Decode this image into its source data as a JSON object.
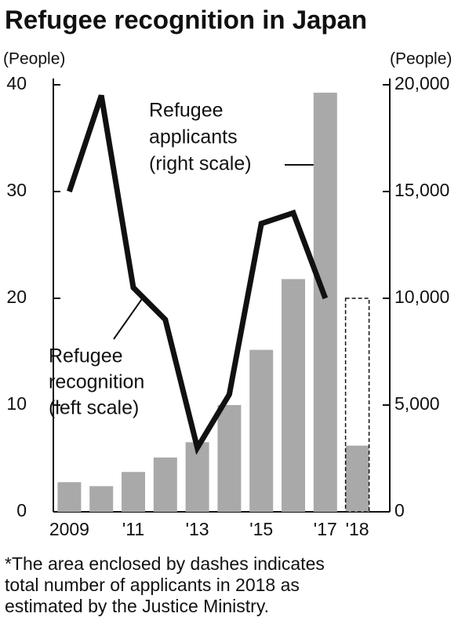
{
  "chart_data": {
    "type": "bar",
    "title": "Refugee recognition in Japan",
    "y_label": "(People)",
    "y2_label": "(People)",
    "categories": [
      "2009",
      null,
      "'11",
      null,
      "'13",
      null,
      "'15",
      null,
      "'17",
      "'18"
    ],
    "series": [
      {
        "type": "bar",
        "axis": "y2",
        "color": "#a9a9a9",
        "values": [
          1388,
          1202,
          1867,
          2545,
          3260,
          5000,
          7586,
          10901,
          19629,
          3100
        ]
      },
      {
        "type": "bar",
        "axis": "y2",
        "style": "dashed",
        "color": "#111111",
        "values": [
          null,
          null,
          null,
          null,
          null,
          null,
          null,
          null,
          null,
          10000
        ]
      },
      {
        "type": "line",
        "axis": "y",
        "color": "#111111",
        "values": [
          30,
          39,
          21,
          18,
          6,
          11,
          27,
          28,
          20,
          null
        ]
      }
    ],
    "ylim": [
      0,
      40
    ],
    "yticks": [
      0,
      10,
      20,
      30,
      40
    ],
    "y2lim": [
      0,
      20000
    ],
    "y2ticks": [
      0,
      {
        "value": 5000,
        "label": "5,000"
      },
      {
        "value": 10000,
        "label": "10,000"
      },
      {
        "value": 15000,
        "label": "15,000"
      },
      {
        "value": 20000,
        "label": "20,000"
      }
    ],
    "annotations": [
      {
        "lines": [
          "Refugee",
          "applicants",
          "(right scale)"
        ]
      },
      {
        "lines": [
          "Refugee",
          "recognition",
          "(left scale)"
        ]
      }
    ],
    "note": [
      "*The area enclosed by dashes indicates",
      "total number of applicants in 2018 as",
      "estimated by the Justice Ministry."
    ]
  }
}
